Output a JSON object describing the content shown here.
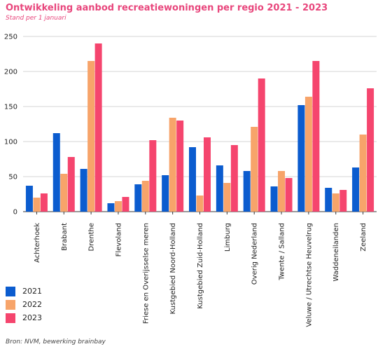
{
  "chart_data": {
    "type": "bar",
    "title": "Ontwikkeling aanbod recreatiewoningen per regio 2021 - 2023",
    "subtitle": "Stand per 1 januari",
    "source": "Bron: NVM, bewerking brainbay",
    "categories": [
      "Achterhoek",
      "Brabant",
      "Drenthe",
      "Flevoland",
      "Friese en Overijsselse meren",
      "Kustgebied Noord-Holland",
      "Kustgebied Zuid-Holland",
      "Limburg",
      "Overig Nederland",
      "Twente / Salland",
      "Veluwe / Utrechtse Heuvelrug",
      "Waddeneilanden",
      "Zeeland"
    ],
    "series": [
      {
        "name": "2021",
        "color": "#0b5ccf",
        "values": [
          37,
          112,
          61,
          12,
          39,
          52,
          92,
          66,
          58,
          36,
          152,
          34,
          63
        ]
      },
      {
        "name": "2022",
        "color": "#f7a46a",
        "values": [
          20,
          54,
          215,
          15,
          44,
          134,
          23,
          41,
          121,
          58,
          164,
          26,
          110
        ]
      },
      {
        "name": "2023",
        "color": "#f5456e",
        "values": [
          26,
          78,
          240,
          21,
          102,
          130,
          106,
          95,
          190,
          48,
          215,
          31,
          176
        ]
      }
    ],
    "ylim": [
      0,
      250
    ],
    "yticks": [
      0,
      50,
      100,
      150,
      200,
      250
    ],
    "grid": true,
    "legend_position": "bottom-left"
  }
}
